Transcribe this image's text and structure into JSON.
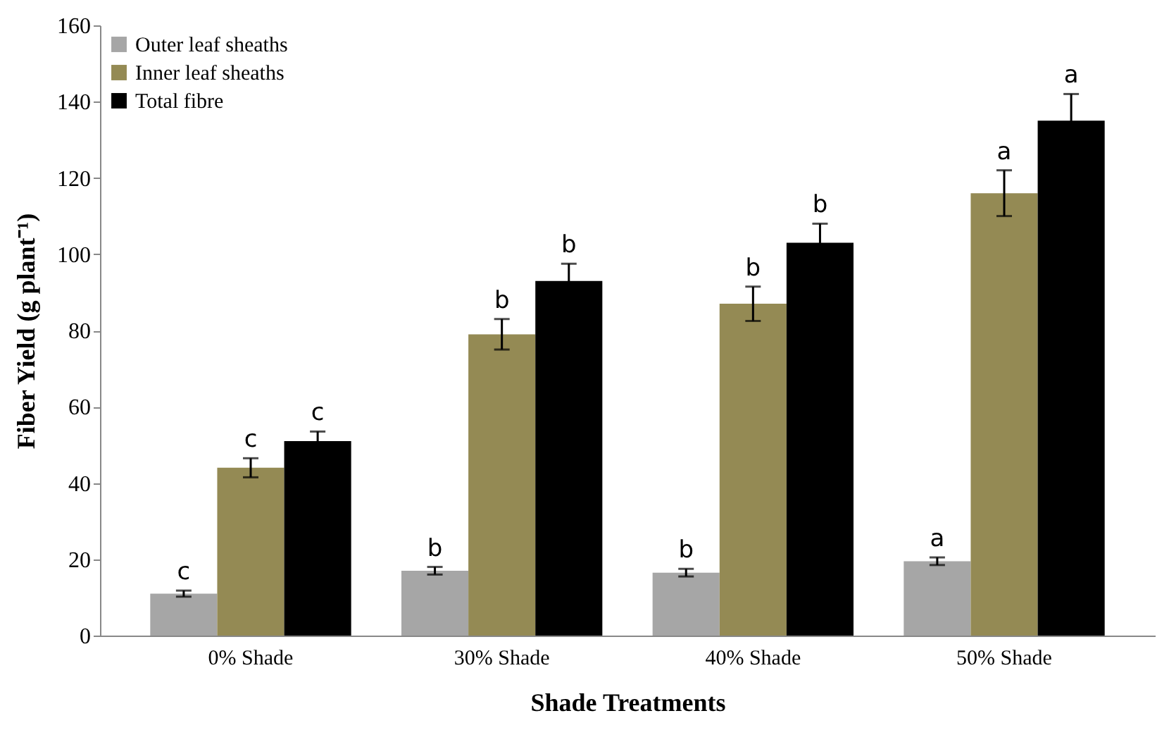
{
  "chart_data": {
    "type": "bar",
    "xlabel": "Shade Treatments",
    "ylabel": "Fiber Yield (g plant⁻¹)",
    "categories": [
      "0% Shade",
      "30% Shade",
      "40% Shade",
      "50% Shade"
    ],
    "series": [
      {
        "name": "Outer leaf sheaths",
        "color": "#a6a6a6",
        "values": [
          11,
          17,
          16.5,
          19.5
        ],
        "errors": [
          0.8,
          1,
          1,
          1
        ],
        "value_labels": [
          "c",
          "b",
          "b",
          "a"
        ]
      },
      {
        "name": "Inner leaf sheaths",
        "color": "#948a54",
        "values": [
          44,
          79,
          87,
          116
        ],
        "errors": [
          2.5,
          4,
          4.5,
          6
        ],
        "value_labels": [
          "c",
          "b",
          "b",
          "a"
        ]
      },
      {
        "name": "Total fibre",
        "color": "#000000",
        "values": [
          51,
          93,
          103,
          135
        ],
        "errors": [
          2.5,
          4.5,
          5,
          7
        ],
        "value_labels": [
          "c",
          "b",
          "b",
          "a"
        ]
      }
    ],
    "ylim": [
      0,
      160
    ],
    "yticks": [
      0,
      20,
      40,
      60,
      80,
      100,
      120,
      140,
      160
    ],
    "grid": false,
    "legend": "top left"
  }
}
